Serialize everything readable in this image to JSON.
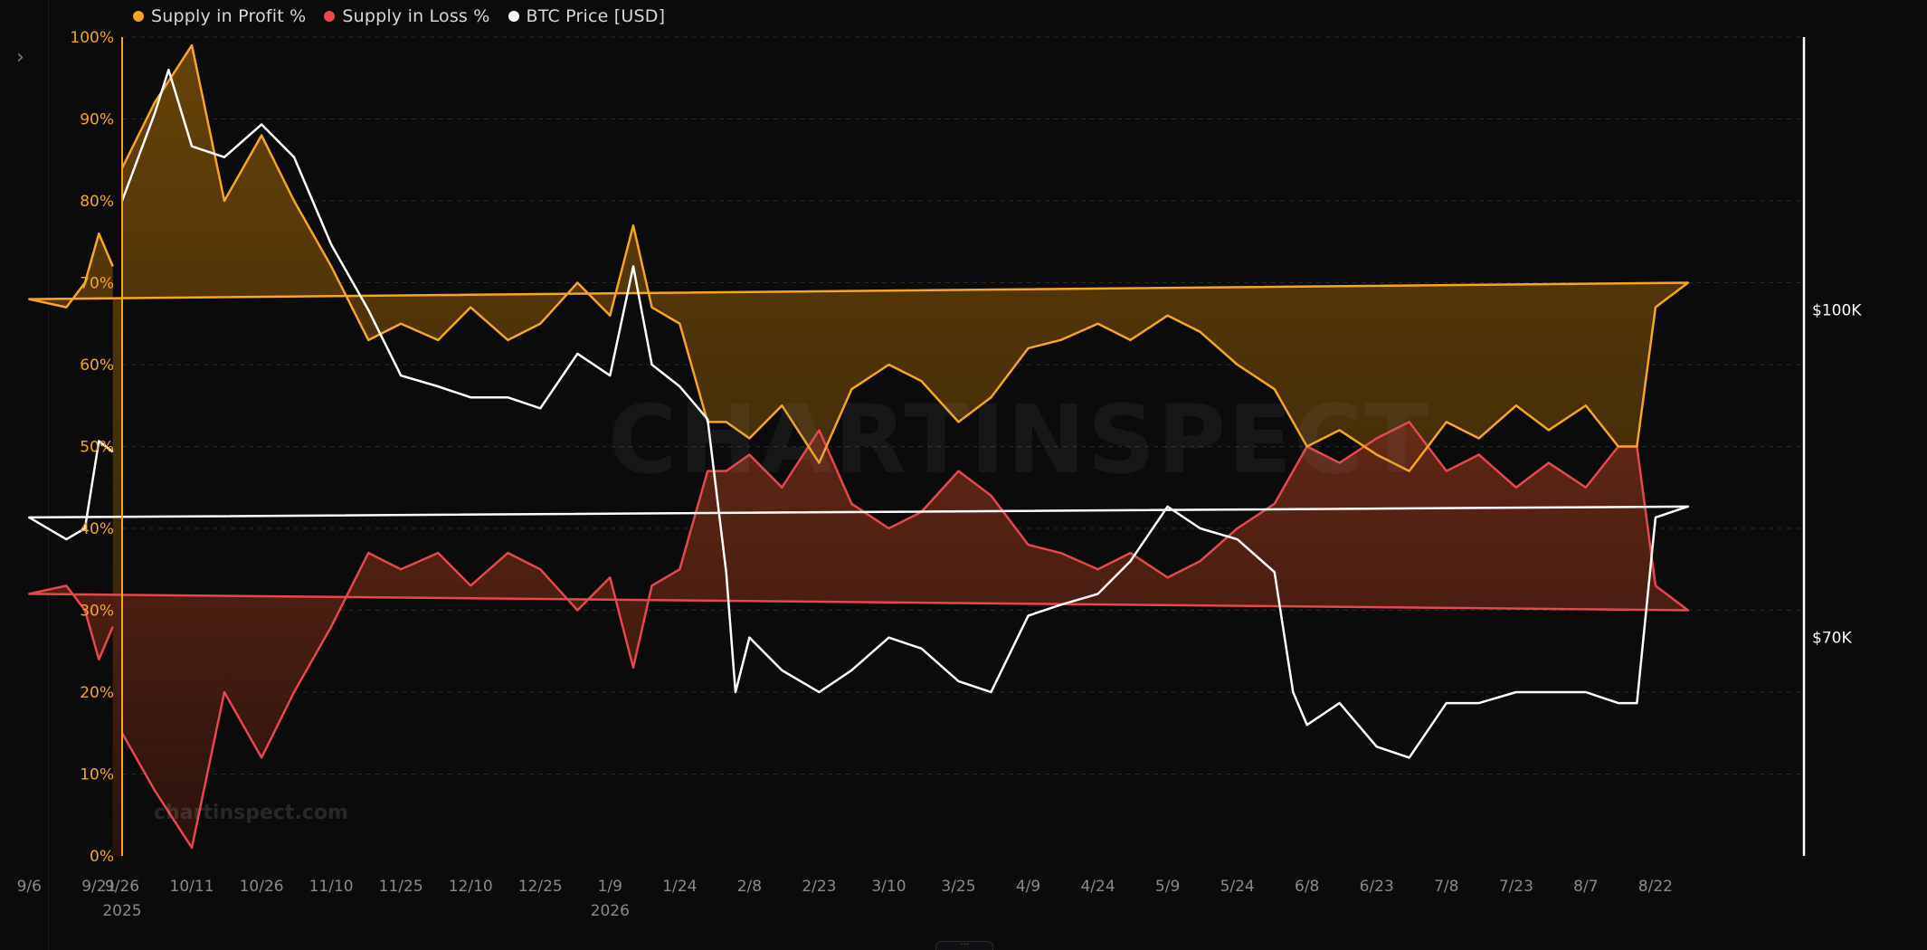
{
  "legend": [
    {
      "label": "Supply in Profit %",
      "color": "#f5a623"
    },
    {
      "label": "Supply in Loss %",
      "color": "#e5484d"
    },
    {
      "label": "BTC Price [USD]",
      "color": "#ffffff"
    }
  ],
  "watermark": "CHARTINSPECT",
  "watermark_small": "chartinspect.com",
  "ui": {
    "expand_icon": "chevron-right-icon",
    "handle_icon": "drag-handle-icon"
  },
  "chart_data": {
    "type": "area",
    "x_ticks": [
      "9/26",
      "10/11",
      "10/26",
      "11/10",
      "11/25",
      "12/10",
      "12/25",
      "1/9",
      "1/24",
      "2/8",
      "2/23",
      "3/10",
      "3/25",
      "4/9",
      "4/24",
      "5/9",
      "5/24",
      "6/8",
      "6/23",
      "7/8",
      "7/23",
      "8/7",
      "8/22",
      "9/6",
      "9/21"
    ],
    "year_labels": [
      {
        "label": "2025",
        "at": "9/26"
      },
      {
        "label": "2026",
        "at": "1/9"
      }
    ],
    "y_left_ticks": [
      "0%",
      "10%",
      "20%",
      "30%",
      "40%",
      "50%",
      "60%",
      "70%",
      "80%",
      "90%",
      "100%"
    ],
    "y_left_range": [
      0,
      100
    ],
    "y_right_labels": [
      "$100K",
      "$70K"
    ],
    "y_right_range_usd": [
      50000,
      125000
    ],
    "grid": true,
    "legend_position": "top-left",
    "series": [
      {
        "name": "Supply in Profit %",
        "color": "#f5a623",
        "unit": "%",
        "x": [
          "9/26",
          "10/3",
          "10/11",
          "10/18",
          "10/26",
          "11/2",
          "11/10",
          "11/18",
          "11/25",
          "12/3",
          "12/10",
          "12/18",
          "12/25",
          "1/2",
          "1/9",
          "1/14",
          "1/18",
          "1/24",
          "1/30",
          "2/3",
          "2/8",
          "2/15",
          "2/23",
          "3/2",
          "3/10",
          "3/17",
          "3/25",
          "4/1",
          "4/9",
          "4/16",
          "4/24",
          "5/1",
          "5/9",
          "5/16",
          "5/24",
          "6/1",
          "6/8",
          "6/15",
          "6/23",
          "6/30",
          "7/8",
          "7/15",
          "7/23",
          "7/30",
          "8/7",
          "8/14",
          "8/18",
          "8/22",
          "8/29",
          "9/6",
          "9/14",
          "9/18",
          "9/21",
          "9/24"
        ],
        "values": [
          84,
          92,
          99,
          80,
          88,
          80,
          72,
          63,
          65,
          63,
          67,
          63,
          65,
          70,
          66,
          77,
          67,
          65,
          53,
          53,
          51,
          55,
          48,
          57,
          60,
          58,
          53,
          56,
          62,
          63,
          65,
          63,
          66,
          64,
          60,
          57,
          50,
          52,
          49,
          47,
          53,
          51,
          55,
          52,
          55,
          50,
          50,
          67,
          70,
          68,
          67,
          70,
          76,
          72
        ]
      },
      {
        "name": "Supply in Loss %",
        "color": "#e5484d",
        "unit": "%",
        "x": [
          "9/26",
          "10/3",
          "10/11",
          "10/18",
          "10/26",
          "11/2",
          "11/10",
          "11/18",
          "11/25",
          "12/3",
          "12/10",
          "12/18",
          "12/25",
          "1/2",
          "1/9",
          "1/14",
          "1/18",
          "1/24",
          "1/30",
          "2/3",
          "2/8",
          "2/15",
          "2/23",
          "3/2",
          "3/10",
          "3/17",
          "3/25",
          "4/1",
          "4/9",
          "4/16",
          "4/24",
          "5/1",
          "5/9",
          "5/16",
          "5/24",
          "6/1",
          "6/8",
          "6/15",
          "6/23",
          "6/30",
          "7/8",
          "7/15",
          "7/23",
          "7/30",
          "8/7",
          "8/14",
          "8/18",
          "8/22",
          "8/29",
          "9/6",
          "9/14",
          "9/18",
          "9/21",
          "9/24"
        ],
        "values": [
          15,
          8,
          1,
          20,
          12,
          20,
          28,
          37,
          35,
          37,
          33,
          37,
          35,
          30,
          34,
          23,
          33,
          35,
          47,
          47,
          49,
          45,
          52,
          43,
          40,
          42,
          47,
          44,
          38,
          37,
          35,
          37,
          34,
          36,
          40,
          43,
          50,
          48,
          51,
          53,
          47,
          49,
          45,
          48,
          45,
          50,
          50,
          33,
          30,
          32,
          33,
          30,
          24,
          28
        ]
      },
      {
        "name": "BTC Price [USD]",
        "color": "#ffffff",
        "unit": "USD",
        "x": [
          "9/26",
          "10/3",
          "10/6",
          "10/11",
          "10/18",
          "10/26",
          "11/2",
          "11/10",
          "11/18",
          "11/25",
          "12/3",
          "12/10",
          "12/18",
          "12/25",
          "1/2",
          "1/9",
          "1/14",
          "1/18",
          "1/24",
          "1/30",
          "2/3",
          "2/5",
          "2/8",
          "2/15",
          "2/23",
          "3/2",
          "3/10",
          "3/17",
          "3/25",
          "4/1",
          "4/9",
          "4/16",
          "4/24",
          "5/1",
          "5/9",
          "5/16",
          "5/24",
          "6/1",
          "6/5",
          "6/8",
          "6/15",
          "6/23",
          "6/30",
          "7/8",
          "7/15",
          "7/23",
          "7/30",
          "8/7",
          "8/14",
          "8/18",
          "8/22",
          "8/29",
          "9/6",
          "9/14",
          "9/18",
          "9/21",
          "9/24"
        ],
        "values": [
          110000,
          118000,
          122000,
          115000,
          114000,
          117000,
          114000,
          106000,
          100000,
          94000,
          93000,
          92000,
          92000,
          91000,
          96000,
          94000,
          104000,
          95000,
          93000,
          90000,
          76000,
          65000,
          70000,
          67000,
          65000,
          67000,
          70000,
          69000,
          66000,
          65000,
          72000,
          73000,
          74000,
          77000,
          82000,
          80000,
          79000,
          76000,
          65000,
          62000,
          64000,
          60000,
          59000,
          64000,
          64000,
          65000,
          65000,
          65000,
          64000,
          64000,
          81000,
          82000,
          81000,
          79000,
          80000,
          88000,
          87000
        ]
      }
    ]
  }
}
